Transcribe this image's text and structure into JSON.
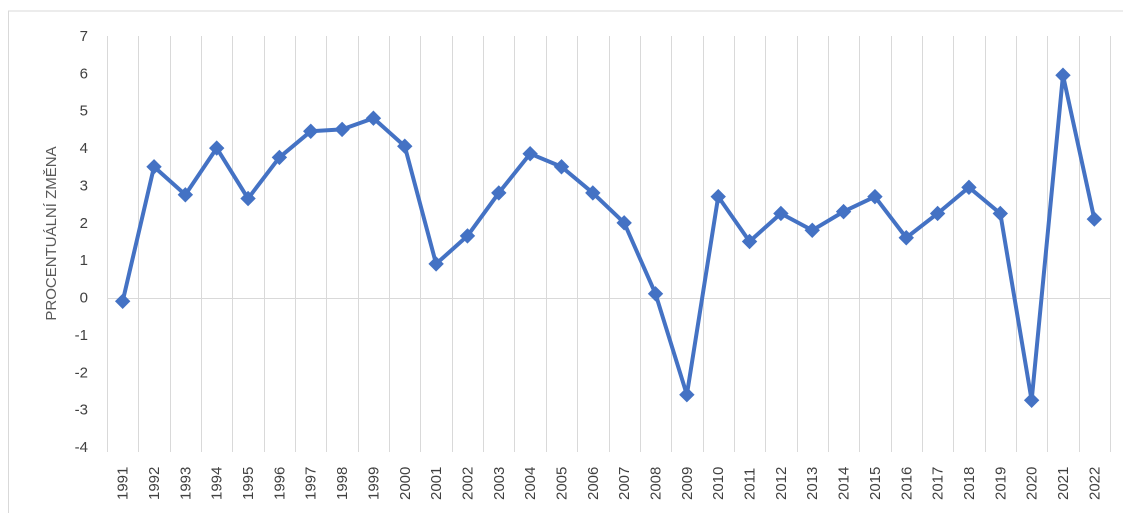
{
  "chart_data": {
    "type": "line",
    "ylabel": "PROCENTUÁLNÍ ZMĚNA",
    "xlabel": "",
    "categories": [
      "1991",
      "1992",
      "1993",
      "1994",
      "1995",
      "1996",
      "1997",
      "1998",
      "1999",
      "2000",
      "2001",
      "2002",
      "2003",
      "2004",
      "2005",
      "2006",
      "2007",
      "2008",
      "2009",
      "2010",
      "2011",
      "2012",
      "2013",
      "2014",
      "2015",
      "2016",
      "2017",
      "2018",
      "2019",
      "2020",
      "2021",
      "2022"
    ],
    "series": [
      {
        "values": [
          -0.1,
          3.5,
          2.75,
          4.0,
          2.65,
          3.75,
          4.45,
          4.5,
          4.8,
          4.05,
          0.9,
          1.65,
          2.8,
          3.85,
          3.5,
          2.8,
          2.0,
          0.1,
          -2.6,
          2.7,
          1.5,
          2.25,
          1.8,
          2.3,
          2.7,
          1.6,
          2.25,
          2.95,
          2.25,
          -2.75,
          5.95,
          2.1
        ]
      }
    ],
    "ylim": [
      -4,
      7
    ],
    "yticks": [
      "7",
      "6",
      "5",
      "4",
      "3",
      "2",
      "1",
      "0",
      "-1",
      "-2",
      "-3",
      "-4"
    ],
    "grid": "vertical",
    "legend": "none",
    "colors": {
      "line": "#4472C4",
      "grid": "#D9D9D9",
      "zero_line": "#D9D9D9",
      "tick_text": "#404040",
      "axis_title": "#595959",
      "frame": "#D9D9D9"
    },
    "marker": "diamond"
  }
}
